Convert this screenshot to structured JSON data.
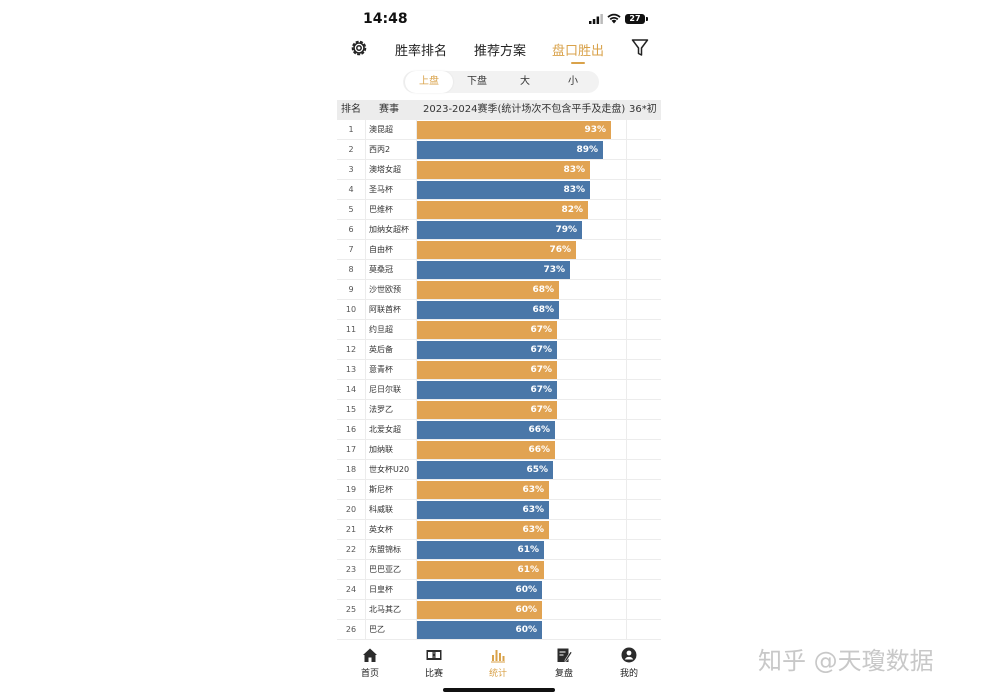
{
  "status": {
    "time": "14:48",
    "battery": "27"
  },
  "nav": {
    "tabs": [
      {
        "label": "胜率排名"
      },
      {
        "label": "推荐方案"
      },
      {
        "label": "盘口胜出"
      }
    ],
    "active_tab": "盘口胜出"
  },
  "segment": {
    "options": [
      "上盘",
      "下盘",
      "大",
      "小"
    ],
    "active": "上盘"
  },
  "table": {
    "headers": {
      "rank": "排名",
      "league": "赛事",
      "season": "2023-2024赛季(统计场次不包含平手及走盘)",
      "extra": "36*初"
    },
    "colors": {
      "orange": "#e1a352",
      "blue": "#4a77a8"
    },
    "rows": [
      {
        "rank": "1",
        "name": "澳昆超",
        "pct_label": "93%",
        "value": 93,
        "color": "orange"
      },
      {
        "rank": "2",
        "name": "西丙2",
        "pct_label": "89%",
        "value": 89,
        "color": "blue"
      },
      {
        "rank": "3",
        "name": "澳塔女超",
        "pct_label": "83%",
        "value": 83,
        "color": "orange"
      },
      {
        "rank": "4",
        "name": "圣马杯",
        "pct_label": "83%",
        "value": 83,
        "color": "blue"
      },
      {
        "rank": "5",
        "name": "巴维杯",
        "pct_label": "82%",
        "value": 82,
        "color": "orange"
      },
      {
        "rank": "6",
        "name": "加纳女超杯",
        "pct_label": "79%",
        "value": 79,
        "color": "blue"
      },
      {
        "rank": "7",
        "name": "自由杯",
        "pct_label": "76%",
        "value": 76,
        "color": "orange"
      },
      {
        "rank": "8",
        "name": "莫桑冠",
        "pct_label": "73%",
        "value": 73,
        "color": "blue"
      },
      {
        "rank": "9",
        "name": "沙世欧预",
        "pct_label": "68%",
        "value": 68,
        "color": "orange"
      },
      {
        "rank": "10",
        "name": "阿联酋杯",
        "pct_label": "68%",
        "value": 68,
        "color": "blue"
      },
      {
        "rank": "11",
        "name": "约旦超",
        "pct_label": "67%",
        "value": 67,
        "color": "orange"
      },
      {
        "rank": "12",
        "name": "英后备",
        "pct_label": "67%",
        "value": 67,
        "color": "blue"
      },
      {
        "rank": "13",
        "name": "意青杯",
        "pct_label": "67%",
        "value": 67,
        "color": "orange"
      },
      {
        "rank": "14",
        "name": "尼日尔联",
        "pct_label": "67%",
        "value": 67,
        "color": "blue"
      },
      {
        "rank": "15",
        "name": "法罗乙",
        "pct_label": "67%",
        "value": 67,
        "color": "orange"
      },
      {
        "rank": "16",
        "name": "北爱女超",
        "pct_label": "66%",
        "value": 66,
        "color": "blue"
      },
      {
        "rank": "17",
        "name": "加纳联",
        "pct_label": "66%",
        "value": 66,
        "color": "orange"
      },
      {
        "rank": "18",
        "name": "世女杯U20",
        "pct_label": "65%",
        "value": 65,
        "color": "blue"
      },
      {
        "rank": "19",
        "name": "斯尼杯",
        "pct_label": "63%",
        "value": 63,
        "color": "orange"
      },
      {
        "rank": "20",
        "name": "科威联",
        "pct_label": "63%",
        "value": 63,
        "color": "blue"
      },
      {
        "rank": "21",
        "name": "英女杯",
        "pct_label": "63%",
        "value": 63,
        "color": "orange"
      },
      {
        "rank": "22",
        "name": "东盟锦标",
        "pct_label": "61%",
        "value": 61,
        "color": "blue"
      },
      {
        "rank": "23",
        "name": "巴巴亚乙",
        "pct_label": "61%",
        "value": 61,
        "color": "orange"
      },
      {
        "rank": "24",
        "name": "日皇杯",
        "pct_label": "60%",
        "value": 60,
        "color": "blue"
      },
      {
        "rank": "25",
        "name": "北马其乙",
        "pct_label": "60%",
        "value": 60,
        "color": "orange"
      },
      {
        "rank": "26",
        "name": "巴乙",
        "pct_label": "60%",
        "value": 60,
        "color": "blue"
      }
    ]
  },
  "bottom_nav": {
    "items": [
      {
        "label": "首页",
        "icon": "home-icon"
      },
      {
        "label": "比赛",
        "icon": "scoreboard-icon"
      },
      {
        "label": "统计",
        "icon": "bar-chart-icon"
      },
      {
        "label": "复盘",
        "icon": "edit-note-icon"
      },
      {
        "label": "我的",
        "icon": "user-icon"
      }
    ],
    "active": "统计"
  },
  "watermark": "知乎 @天瓊数据"
}
